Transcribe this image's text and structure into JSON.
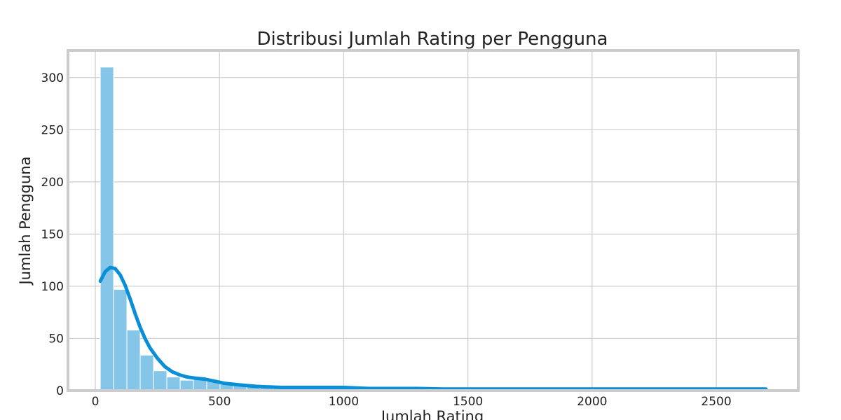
{
  "chart_data": {
    "type": "bar",
    "title": "Distribusi Jumlah Rating per Pengguna",
    "xlabel": "Jumlah Rating",
    "ylabel": "Jumlah Pengguna",
    "xlim": [
      -110,
      2830
    ],
    "ylim": [
      0,
      326
    ],
    "x_ticks": [
      0,
      500,
      1000,
      1500,
      2000,
      2500
    ],
    "y_ticks": [
      0,
      50,
      100,
      150,
      200,
      250,
      300
    ],
    "grid": true,
    "bins": {
      "start": 20,
      "width": 53.6,
      "counts": [
        310,
        97,
        58,
        34,
        19,
        13,
        10,
        12,
        9,
        7,
        5,
        4,
        3,
        3,
        2,
        2,
        2,
        2,
        2,
        2,
        2,
        2,
        1,
        1,
        1,
        1,
        1,
        1,
        1,
        1,
        1,
        1,
        1,
        1,
        1,
        1,
        1,
        1,
        1,
        1,
        1,
        1,
        1,
        1,
        1,
        1,
        1,
        1,
        1,
        1
      ]
    },
    "kde": {
      "x": [
        20,
        40,
        60,
        80,
        100,
        120,
        140,
        160,
        180,
        200,
        220,
        250,
        280,
        310,
        340,
        370,
        400,
        440,
        480,
        520,
        560,
        600,
        650,
        700,
        750,
        800,
        900,
        1000,
        1100,
        1200,
        1300,
        1400,
        1500,
        1600,
        1700,
        1800,
        1900,
        2000,
        2200,
        2400,
        2600,
        2700
      ],
      "y": [
        105,
        114,
        118,
        117,
        111,
        101,
        88,
        74,
        61,
        50,
        41,
        31,
        23,
        18,
        15,
        13,
        12,
        11,
        9,
        7,
        6,
        5,
        4,
        3.5,
        3,
        3,
        3,
        3,
        2,
        2,
        2,
        1.5,
        1.5,
        1.5,
        1.5,
        1.5,
        1.5,
        1.5,
        1.5,
        1.5,
        1.5,
        1.5
      ]
    },
    "colors": {
      "bar_fill": "#85C6E8",
      "bar_stroke": "#ffffff",
      "kde_line": "#0A8FD6",
      "grid": "#cccccc",
      "frame": "#cccccc"
    }
  }
}
